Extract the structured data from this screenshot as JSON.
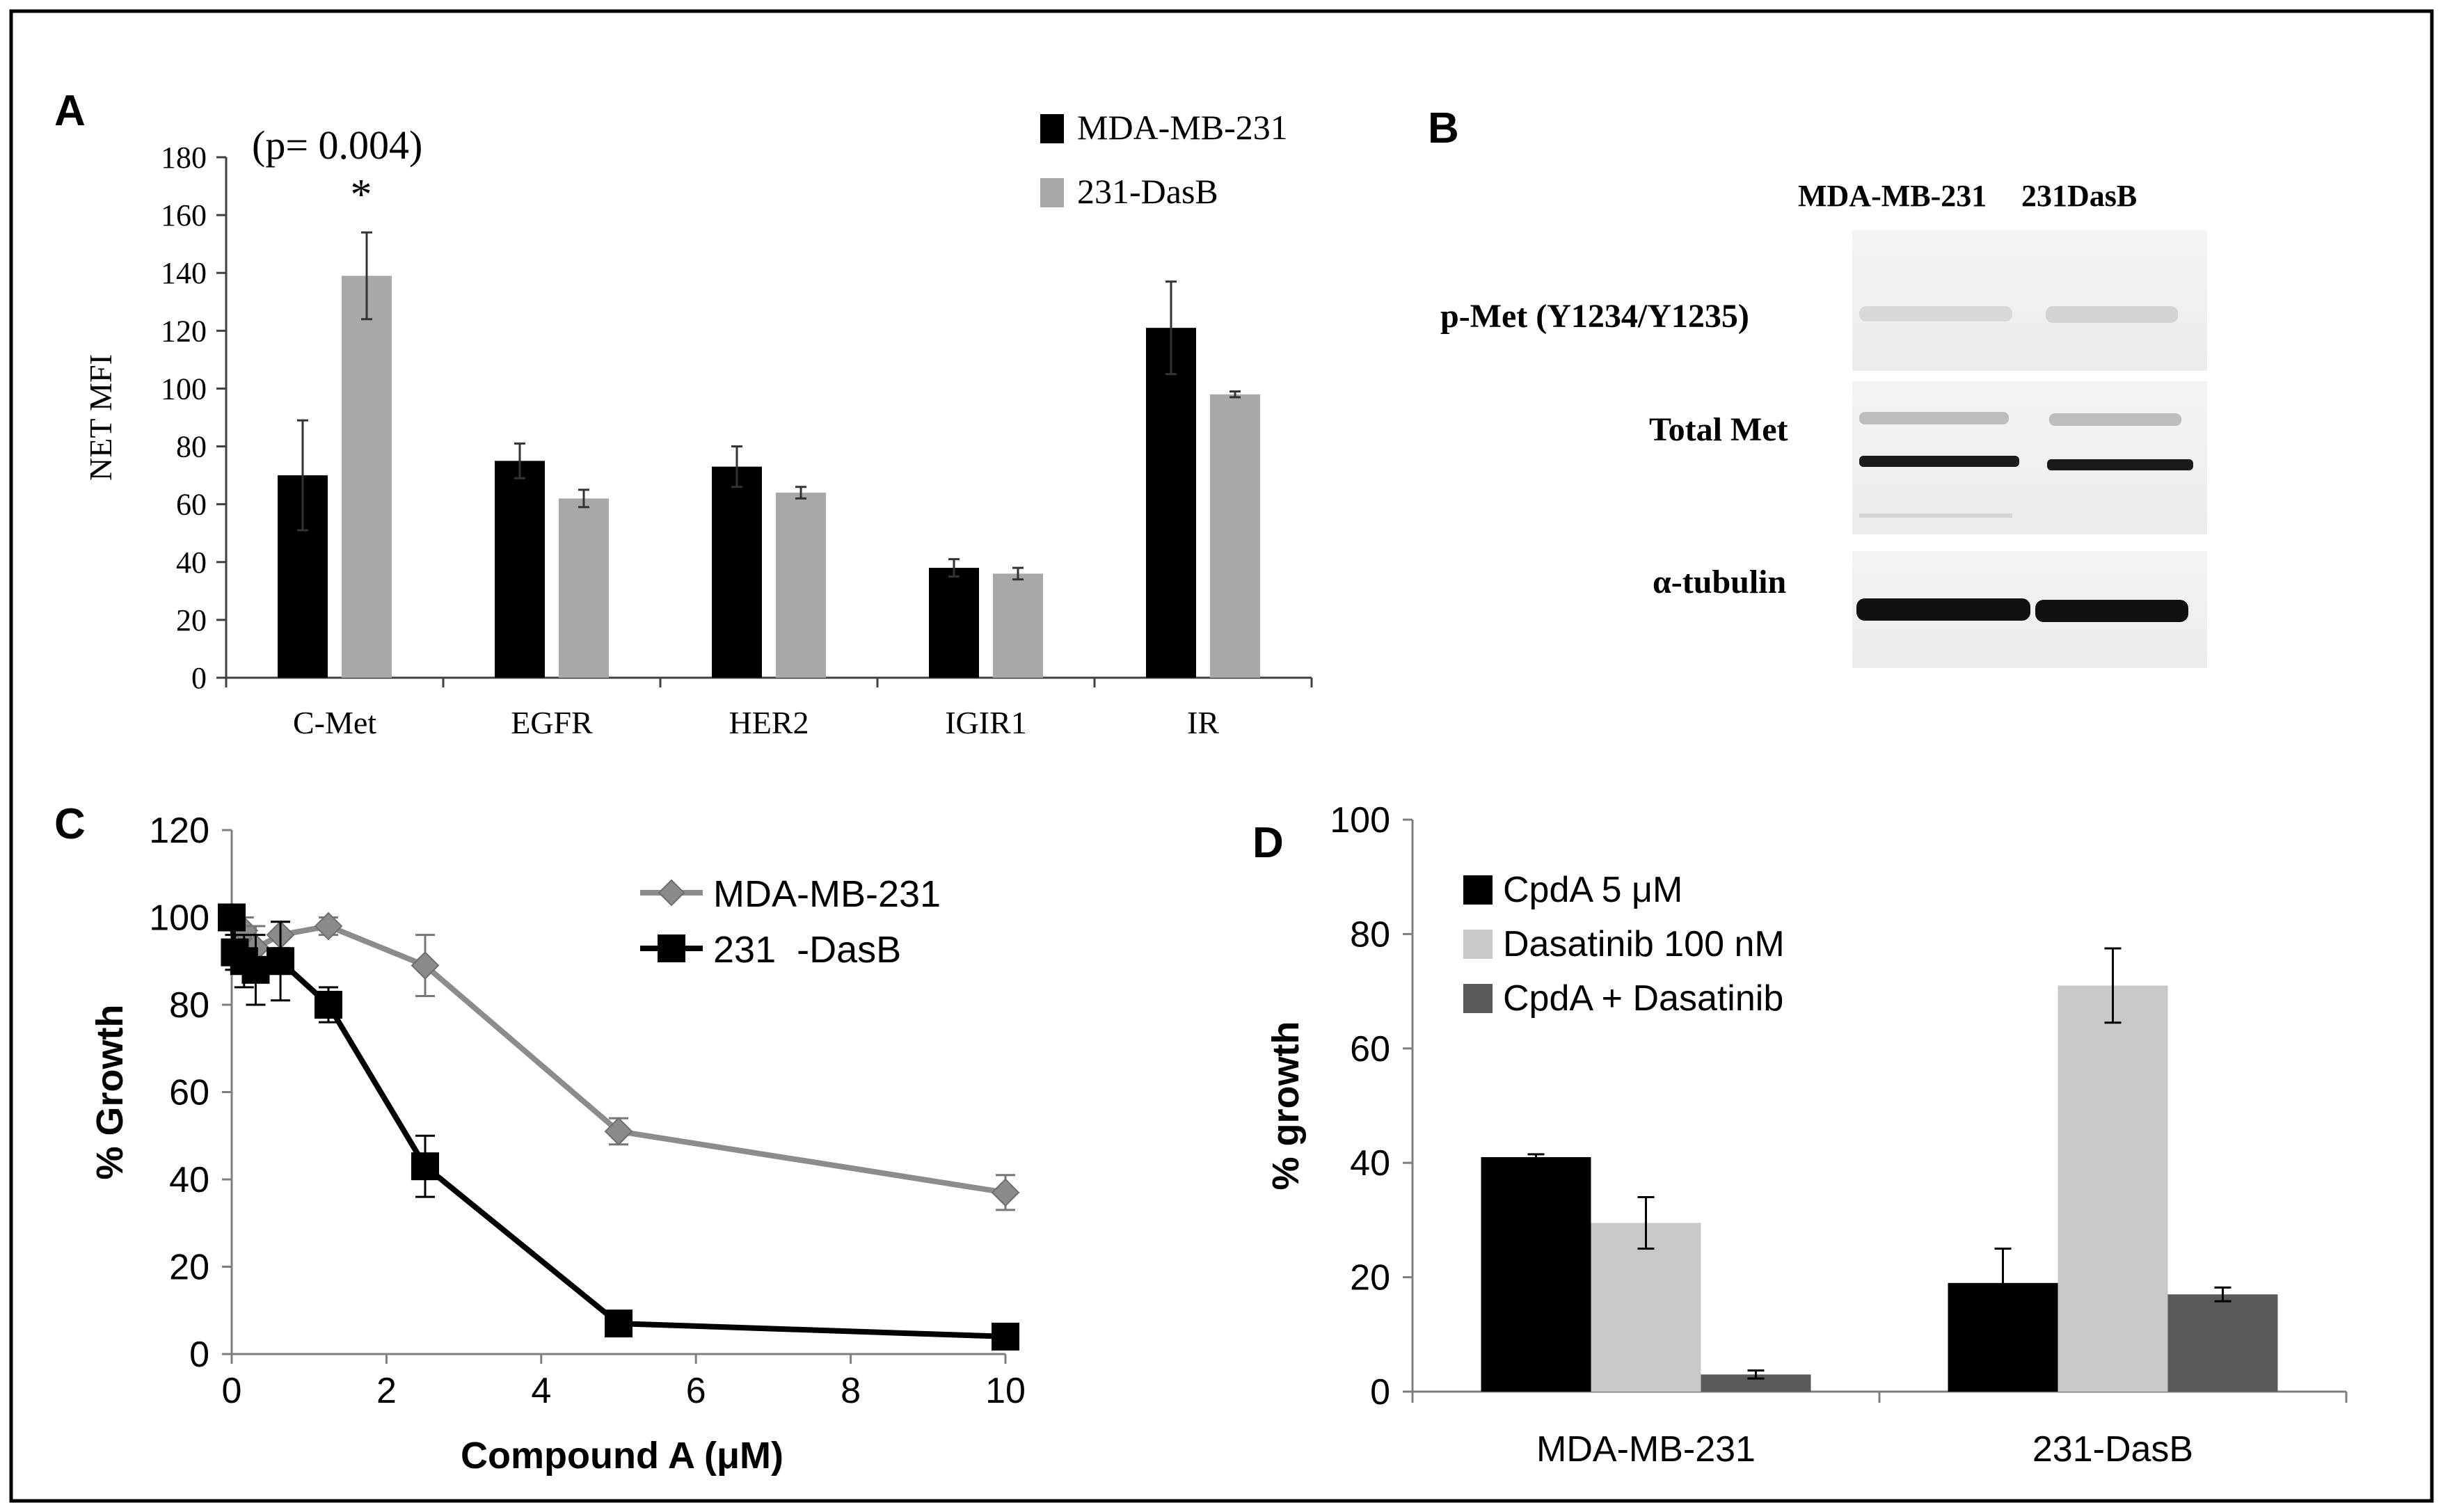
{
  "colors": {
    "black": "#000000",
    "gray": "#a8a8a8",
    "line_gray": "#8c8c8c",
    "marker_gray": "#8a8a8a",
    "light_gray": "#c8c8c8",
    "dark_gray": "#595959",
    "axis": "#404040"
  },
  "panels": {
    "a": {
      "letter": "A"
    },
    "b": {
      "letter": "B"
    },
    "c": {
      "letter": "C"
    },
    "d": {
      "letter": "D"
    }
  },
  "chart_data": [
    {
      "panel": "A",
      "type": "bar",
      "title": "",
      "xlabel": "",
      "ylabel": "NET MFI",
      "ylim": [
        0,
        180
      ],
      "yticks": [
        "0",
        "20",
        "40",
        "60",
        "80",
        "100",
        "120",
        "140",
        "160",
        "180"
      ],
      "categories": [
        "C-Met",
        "EGFR",
        "HER2",
        "IGIR1",
        "IR"
      ],
      "series": [
        {
          "name": "MDA-MB-231",
          "color": "#000000",
          "values": [
            70,
            75,
            73,
            38,
            121
          ],
          "errors": [
            19,
            6,
            7,
            3,
            16
          ]
        },
        {
          "name": "231-DasB",
          "color": "#a8a8a8",
          "values": [
            139,
            62,
            64,
            36,
            98
          ],
          "errors": [
            15,
            3,
            2,
            2,
            1
          ]
        }
      ],
      "annotations": [
        "(p= 0.004)",
        "*"
      ],
      "legend": "top-right"
    },
    {
      "panel": "B",
      "type": "western-blot",
      "columns": [
        "MDA-MB-231",
        "231DasB"
      ],
      "rows": [
        "p-Met (Y1234/Y1235)",
        "Total Met",
        "α-tubulin"
      ]
    },
    {
      "panel": "C",
      "type": "line",
      "xlabel": "Compound A (μM)",
      "ylabel": "% Growth",
      "xlim": [
        0,
        10
      ],
      "ylim": [
        0,
        120
      ],
      "xticks": [
        "0",
        "2",
        "4",
        "6",
        "8",
        "10"
      ],
      "yticks": [
        "0",
        "20",
        "40",
        "60",
        "80",
        "100",
        "120"
      ],
      "series": [
        {
          "name": "MDA-MB-231",
          "marker": "diamond",
          "color": "#8c8c8c",
          "x": [
            0,
            0.16,
            0.31,
            0.63,
            1.25,
            2.5,
            5,
            10
          ],
          "y": [
            100,
            97,
            93,
            96,
            98,
            89,
            51,
            37
          ],
          "errors": [
            0,
            3,
            5,
            3,
            2,
            7,
            3,
            4
          ]
        },
        {
          "name": "231  -DasB",
          "marker": "square",
          "color": "#000000",
          "x": [
            0,
            0.04,
            0.16,
            0.31,
            0.63,
            1.25,
            2.5,
            5,
            10
          ],
          "y": [
            100,
            92,
            90,
            88,
            90,
            80,
            43,
            7,
            4
          ],
          "errors": [
            0,
            4,
            6,
            8,
            9,
            4,
            7,
            1,
            1
          ]
        }
      ],
      "legend": "top-right"
    },
    {
      "panel": "D",
      "type": "bar",
      "xlabel": "",
      "ylabel": "% growth",
      "ylim": [
        0,
        100
      ],
      "yticks": [
        "0",
        "20",
        "40",
        "60",
        "80",
        "100"
      ],
      "categories": [
        "MDA-MB-231",
        "231-DasB"
      ],
      "series": [
        {
          "name": "CpdA 5 μM",
          "color": "#000000",
          "values": [
            41,
            19
          ],
          "errors": [
            0.5,
            6
          ]
        },
        {
          "name": "Dasatinib 100 nM",
          "color": "#c8c8c8",
          "values": [
            29.5,
            71
          ],
          "errors": [
            4.5,
            6.5
          ]
        },
        {
          "name": "CpdA + Dasatinib",
          "color": "#595959",
          "values": [
            3,
            17
          ],
          "errors": [
            0.7,
            1.2
          ]
        }
      ],
      "legend": "top-left"
    }
  ]
}
